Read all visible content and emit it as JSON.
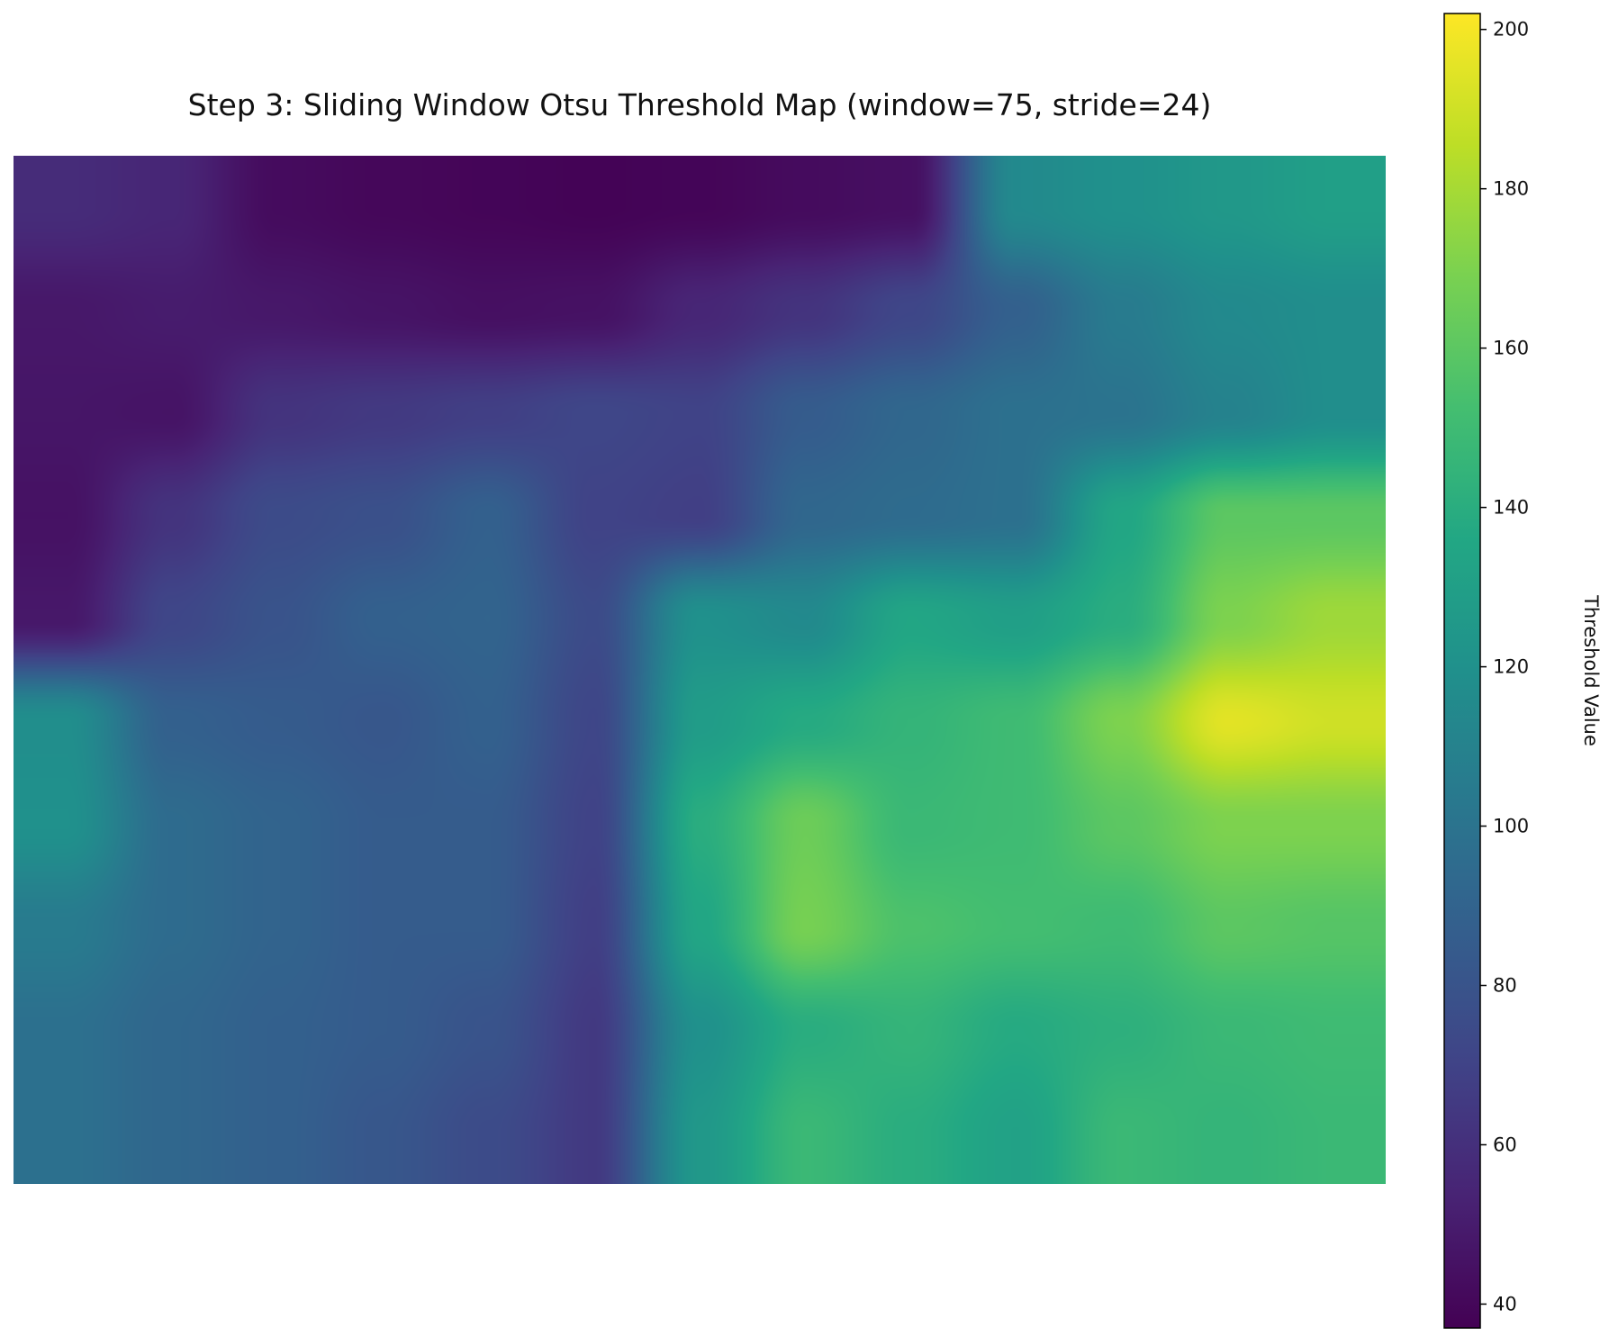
{
  "chart_data": {
    "type": "heatmap",
    "title": "Step 3: Sliding Window Otsu Threshold Map (window=75, stride=24)",
    "colormap": "viridis",
    "axes_visible": false,
    "colorbar": {
      "label": "Threshold Value",
      "min": 37,
      "max": 202,
      "ticks": [
        40,
        60,
        80,
        100,
        120,
        140,
        160,
        180,
        200
      ]
    },
    "rows": 10,
    "cols": 13,
    "values": [
      [
        58,
        55,
        42,
        40,
        39,
        38,
        39,
        42,
        44,
        115,
        120,
        125,
        130
      ],
      [
        48,
        50,
        48,
        46,
        44,
        45,
        55,
        62,
        72,
        88,
        105,
        115,
        118
      ],
      [
        47,
        46,
        62,
        65,
        68,
        72,
        70,
        85,
        92,
        98,
        100,
        110,
        118
      ],
      [
        45,
        62,
        75,
        78,
        88,
        70,
        68,
        92,
        95,
        98,
        135,
        160,
        160
      ],
      [
        48,
        72,
        80,
        88,
        90,
        75,
        120,
        115,
        135,
        130,
        140,
        170,
        178
      ],
      [
        118,
        88,
        85,
        82,
        88,
        72,
        128,
        138,
        145,
        150,
        170,
        195,
        190
      ],
      [
        120,
        95,
        90,
        85,
        85,
        70,
        140,
        165,
        148,
        150,
        160,
        170,
        170
      ],
      [
        105,
        95,
        90,
        85,
        85,
        68,
        135,
        168,
        155,
        152,
        150,
        160,
        158
      ],
      [
        98,
        92,
        88,
        85,
        80,
        65,
        120,
        140,
        145,
        138,
        142,
        148,
        150
      ],
      [
        98,
        92,
        88,
        82,
        75,
        65,
        125,
        148,
        140,
        132,
        148,
        145,
        148
      ]
    ]
  }
}
